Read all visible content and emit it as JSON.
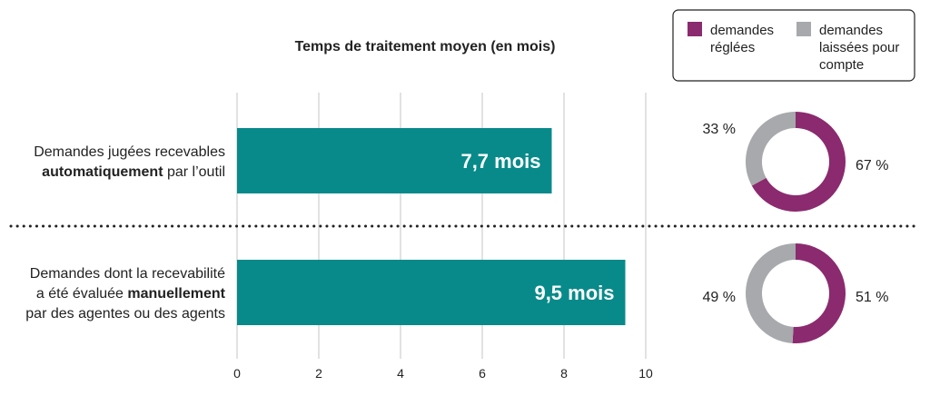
{
  "chart_data": [
    {
      "type": "bar",
      "orientation": "horizontal",
      "title": "Temps de traitement moyen (en mois)",
      "categories": [
        {
          "lines": [
            [
              {
                "t": "Demandes jugées recevables",
                "b": false
              }
            ],
            [
              {
                "t": "automatiquement",
                "b": true
              },
              {
                "t": " par l’outil",
                "b": false
              }
            ]
          ]
        },
        {
          "lines": [
            [
              {
                "t": "Demandes dont la recevabilité",
                "b": false
              }
            ],
            [
              {
                "t": "a été évaluée ",
                "b": false
              },
              {
                "t": "manuellement",
                "b": true
              }
            ],
            [
              {
                "t": "par des agentes ou des agents",
                "b": false
              }
            ]
          ]
        }
      ],
      "values": [
        7.7,
        9.5
      ],
      "data_labels": [
        "7,7 mois",
        "9,5 mois"
      ],
      "xlim": [
        0,
        10
      ],
      "xticks": [
        0,
        2,
        4,
        6,
        8,
        10
      ],
      "xtick_labels": [
        "0",
        "2",
        "4",
        "6",
        "8",
        "10"
      ],
      "grid": true,
      "bar_color": "#088a8a"
    },
    {
      "type": "pie",
      "style": "donut",
      "slices": [
        {
          "name": "demandes réglées",
          "value": 67,
          "label": "67 %"
        },
        {
          "name": "demandes laissées pour compte",
          "value": 33,
          "label": "33 %"
        }
      ]
    },
    {
      "type": "pie",
      "style": "donut",
      "slices": [
        {
          "name": "demandes réglées",
          "value": 51,
          "label": "51 %"
        },
        {
          "name": "demandes laissées pour compte",
          "value": 49,
          "label": "49 %"
        }
      ]
    }
  ],
  "legend": {
    "placement": "top-right",
    "items": [
      {
        "lines": [
          "demandes",
          "réglées"
        ],
        "color": "#8b2a6e"
      },
      {
        "lines": [
          "demandes",
          "laissées pour",
          "compte"
        ],
        "color": "#a7a9ac"
      }
    ]
  }
}
